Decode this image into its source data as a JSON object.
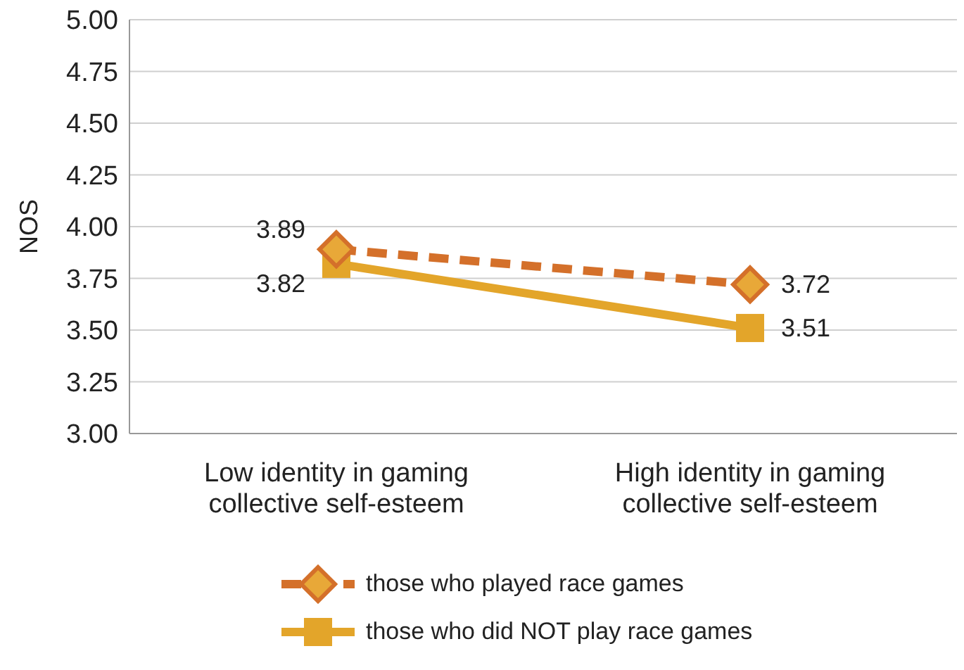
{
  "chart_data": {
    "type": "line",
    "ylabel": "NOS",
    "categories": [
      "Low identity in gaming collective self-esteem",
      "High identity in gaming collective self-esteem"
    ],
    "series": [
      {
        "name": "those who played race games",
        "color": "#d4702a",
        "values": [
          3.89,
          3.72
        ],
        "marker": "diamond",
        "line_style": "dashed"
      },
      {
        "name": "those who did NOT play race games",
        "color": "#e3a52a",
        "values": [
          3.82,
          3.51
        ],
        "marker": "square",
        "line_style": "solid"
      }
    ],
    "ylim": [
      3,
      5
    ],
    "yticks": [
      {
        "value": 3,
        "label": "3.00"
      },
      {
        "value": 3.25,
        "label": "3.25"
      },
      {
        "value": 3.5,
        "label": "3.50"
      },
      {
        "value": 3.75,
        "label": "3.75"
      },
      {
        "value": 4,
        "label": "4.00"
      },
      {
        "value": 4.25,
        "label": "4.25"
      },
      {
        "value": 4.5,
        "label": "4.50"
      },
      {
        "value": 4.75,
        "label": "4.75"
      },
      {
        "value": 5,
        "label": "5.00"
      }
    ],
    "grid": "y",
    "legend": "bottom",
    "data_labels": true
  }
}
